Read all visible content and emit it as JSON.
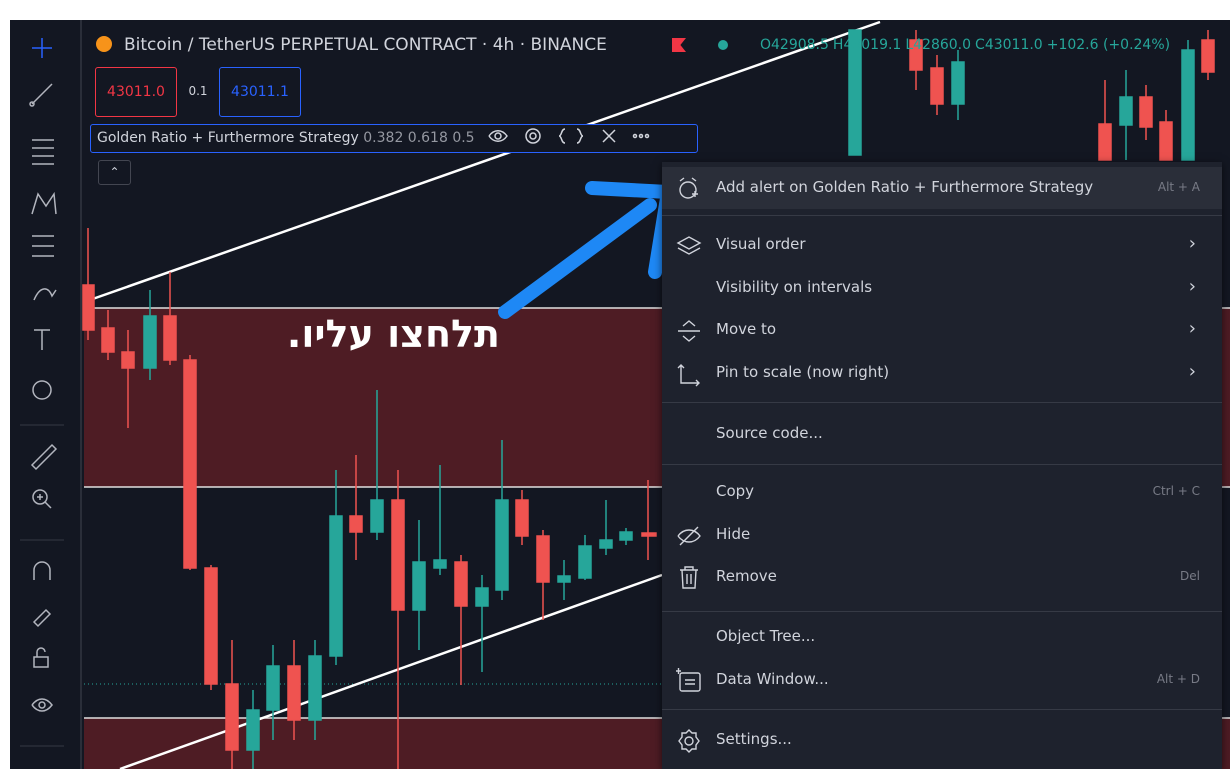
{
  "header": {
    "symbol": "Bitcoin / TetherUS PERPETUAL CONTRACT · 4h · BINANCE",
    "ohlc": [
      "O42908.5",
      "H43019.1",
      "L42860.0",
      "C43011.0",
      "+102.6 (+0.24%)"
    ],
    "sell": "43011.0",
    "spread": "0.1",
    "buy": "43011.1"
  },
  "indicator": {
    "name": "Golden Ratio + Furthermore Strategy",
    "params": "0.382 0.618 0.5"
  },
  "annotation": "תלחצו עליו.",
  "menu": {
    "items": [
      {
        "label": "Add alert on Golden Ratio + Furthermore Strategy",
        "shortcut": "Alt + A"
      },
      {
        "label": "Visual order"
      },
      {
        "label": "Visibility on intervals"
      },
      {
        "label": "Move to"
      },
      {
        "label": "Pin to scale (now right)"
      },
      {
        "label": "Source code..."
      },
      {
        "label": "Copy",
        "shortcut": "Ctrl + C"
      },
      {
        "label": "Hide"
      },
      {
        "label": "Remove",
        "shortcut": "Del"
      },
      {
        "label": "Object Tree..."
      },
      {
        "label": "Data Window...",
        "shortcut": "Alt + D"
      },
      {
        "label": "Settings..."
      }
    ]
  }
}
